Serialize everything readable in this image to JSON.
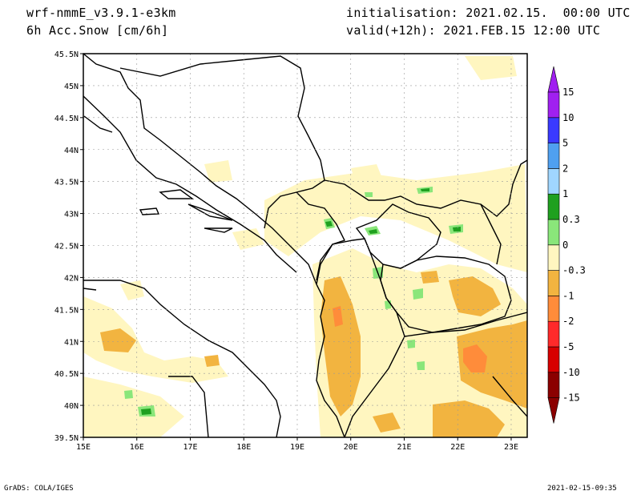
{
  "header": {
    "model": "wrf-nmmE_v3.9.1-e3km",
    "field": "6h Acc.Snow [cm/6h]",
    "init": "initialisation: 2021.02.15.  00:00 UTC",
    "valid": "valid(+12h): 2021.FEB.15 12:00 UTC"
  },
  "footer": {
    "credit": "GrADS: COLA/IGES",
    "timestamp": "2021-02-15-09:35"
  },
  "map": {
    "lon_range": [
      15,
      23.3
    ],
    "lat_range": [
      39.5,
      45.5
    ],
    "x_ticks": [
      {
        "v": 15,
        "label": "15E"
      },
      {
        "v": 16,
        "label": "16E"
      },
      {
        "v": 17,
        "label": "17E"
      },
      {
        "v": 18,
        "label": "18E"
      },
      {
        "v": 19,
        "label": "19E"
      },
      {
        "v": 20,
        "label": "20E"
      },
      {
        "v": 21,
        "label": "21E"
      },
      {
        "v": 22,
        "label": "22E"
      },
      {
        "v": 23,
        "label": "23E"
      }
    ],
    "y_ticks": [
      {
        "v": 39.5,
        "label": "39.5N"
      },
      {
        "v": 40,
        "label": "40N"
      },
      {
        "v": 40.5,
        "label": "40.5N"
      },
      {
        "v": 41,
        "label": "41N"
      },
      {
        "v": 41.5,
        "label": "41.5N"
      },
      {
        "v": 42,
        "label": "42N"
      },
      {
        "v": 42.5,
        "label": "42.5N"
      },
      {
        "v": 43,
        "label": "43N"
      },
      {
        "v": 43.5,
        "label": "43.5N"
      },
      {
        "v": 44,
        "label": "44N"
      },
      {
        "v": 44.5,
        "label": "44.5N"
      },
      {
        "v": 45,
        "label": "45N"
      },
      {
        "v": 45.5,
        "label": "45.5N"
      }
    ],
    "grid": true
  },
  "colorbar": {
    "colors": [
      "#8b0000",
      "#d70000",
      "#ff2a2a",
      "#ff8c3a",
      "#f2b440",
      "#fff6c0",
      "#ffffff",
      "#8ae67a",
      "#1fa01f",
      "#a0d6ff",
      "#4fa0f0",
      "#3a3aff",
      "#a020f0"
    ],
    "labels": [
      "-15",
      "-10",
      "-5",
      "-2",
      "-1",
      "-0.3",
      "0",
      "0.3",
      "1",
      "2",
      "5",
      "10",
      "15"
    ]
  }
}
